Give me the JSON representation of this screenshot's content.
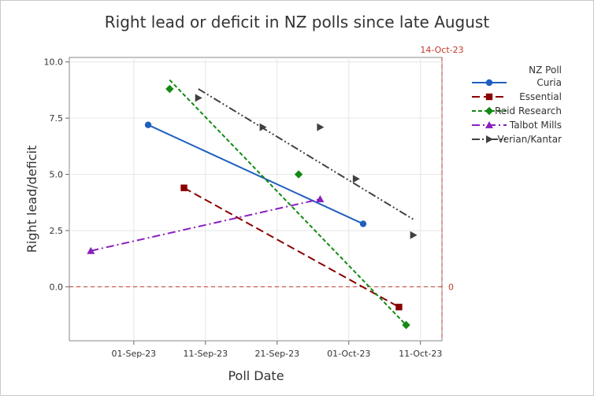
{
  "chart_data": {
    "type": "scatter",
    "title": "Right lead or deficit in NZ polls since late August",
    "xlabel": "Poll Date",
    "ylabel": "Right lead/deficit",
    "x_ticks": [
      "2023-09-01",
      "2023-09-11",
      "2023-09-21",
      "2023-10-01",
      "2023-10-11"
    ],
    "x_tick_labels": [
      "01-Sep-23",
      "11-Sep-23",
      "21-Sep-23",
      "01-Oct-23",
      "11-Oct-23"
    ],
    "xlim": [
      "2023-08-23",
      "2023-10-14"
    ],
    "y_ticks": [
      0.0,
      2.5,
      5.0,
      7.5,
      10.0
    ],
    "y_tick_labels": [
      "0.0",
      "2.5",
      "5.0",
      "7.5",
      "10.0"
    ],
    "ylim": [
      -2.4,
      10.2
    ],
    "grid": true,
    "legend": {
      "title": "NZ Poll",
      "position": "right"
    },
    "reference_lines": [
      {
        "orientation": "vertical",
        "x": "2023-10-14",
        "label": "14-Oct-23",
        "color": "#c0392b"
      },
      {
        "orientation": "horizontal",
        "y": 0,
        "label": "0",
        "color": "#c0392b"
      }
    ],
    "series": [
      {
        "name": "Curia",
        "color": "#1f5fbf",
        "marker": "circle",
        "dash": "solid",
        "points": [
          [
            "2023-09-03",
            7.2
          ],
          [
            "2023-10-03",
            2.8
          ]
        ],
        "fit": [
          [
            "2023-09-03",
            7.2
          ],
          [
            "2023-10-03",
            2.8
          ]
        ]
      },
      {
        "name": "Essential",
        "color": "#8b0000",
        "marker": "square",
        "dash": "long-dash",
        "points": [
          [
            "2023-09-08",
            4.4
          ],
          [
            "2023-10-08",
            -0.9
          ]
        ],
        "fit": [
          [
            "2023-09-08",
            4.4
          ],
          [
            "2023-10-08",
            -0.9
          ]
        ]
      },
      {
        "name": "Reid Research",
        "color": "#138a13",
        "marker": "diamond",
        "dash": "short-dash",
        "points": [
          [
            "2023-09-06",
            8.8
          ],
          [
            "2023-09-24",
            5.0
          ],
          [
            "2023-10-09",
            -1.7
          ]
        ],
        "fit": [
          [
            "2023-09-06",
            9.2
          ],
          [
            "2023-10-09",
            -1.7
          ]
        ]
      },
      {
        "name": "Talbot Mills",
        "color": "#8a1fbf",
        "marker": "triangle-up",
        "dash": "dash-dot",
        "points": [
          [
            "2023-08-26",
            1.6
          ],
          [
            "2023-09-27",
            3.9
          ]
        ],
        "fit": [
          [
            "2023-08-26",
            1.6
          ],
          [
            "2023-09-27",
            3.9
          ]
        ]
      },
      {
        "name": "Verian/Kantar",
        "color": "#404040",
        "marker": "triangle-right",
        "dash": "dash-dot-dot",
        "points": [
          [
            "2023-09-10",
            8.4
          ],
          [
            "2023-09-19",
            7.1
          ],
          [
            "2023-09-27",
            7.1
          ],
          [
            "2023-10-02",
            4.8
          ],
          [
            "2023-10-10",
            2.3
          ]
        ],
        "fit": [
          [
            "2023-09-10",
            8.8
          ],
          [
            "2023-10-10",
            3.0
          ]
        ]
      }
    ]
  }
}
